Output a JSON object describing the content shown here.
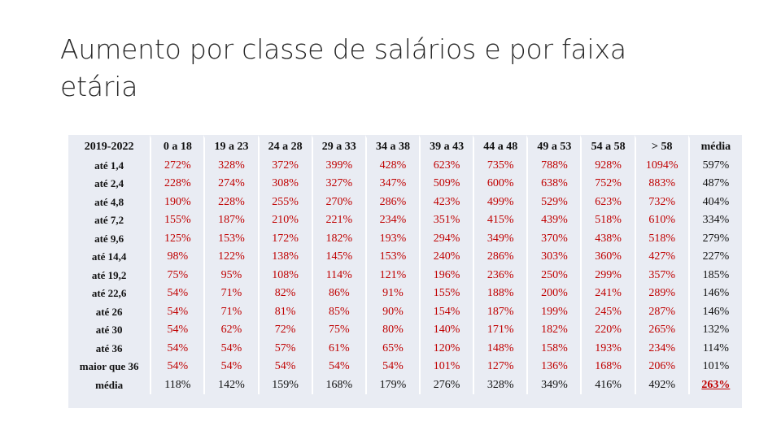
{
  "title": "Aumento por classe de salários e por faixa etária",
  "table": {
    "header": [
      "2019-2022",
      "0 a 18",
      "19 a 23",
      "24 a 28",
      "29 a 33",
      "34 a 38",
      "39 a 43",
      "44 a 48",
      "49 a 53",
      "54 a 58",
      "> 58",
      "média"
    ],
    "rows": [
      {
        "label": "até 1,4",
        "values": [
          "272%",
          "328%",
          "372%",
          "399%",
          "428%",
          "623%",
          "735%",
          "788%",
          "928%",
          "1094%",
          "597%"
        ]
      },
      {
        "label": "até 2,4",
        "values": [
          "228%",
          "274%",
          "308%",
          "327%",
          "347%",
          "509%",
          "600%",
          "638%",
          "752%",
          "883%",
          "487%"
        ]
      },
      {
        "label": "até 4,8",
        "values": [
          "190%",
          "228%",
          "255%",
          "270%",
          "286%",
          "423%",
          "499%",
          "529%",
          "623%",
          "732%",
          "404%"
        ]
      },
      {
        "label": "até 7,2",
        "values": [
          "155%",
          "187%",
          "210%",
          "221%",
          "234%",
          "351%",
          "415%",
          "439%",
          "518%",
          "610%",
          "334%"
        ]
      },
      {
        "label": "até 9,6",
        "values": [
          "125%",
          "153%",
          "172%",
          "182%",
          "193%",
          "294%",
          "349%",
          "370%",
          "438%",
          "518%",
          "279%"
        ]
      },
      {
        "label": "até 14,4",
        "values": [
          "98%",
          "122%",
          "138%",
          "145%",
          "153%",
          "240%",
          "286%",
          "303%",
          "360%",
          "427%",
          "227%"
        ]
      },
      {
        "label": "até 19,2",
        "values": [
          "75%",
          "95%",
          "108%",
          "114%",
          "121%",
          "196%",
          "236%",
          "250%",
          "299%",
          "357%",
          "185%"
        ]
      },
      {
        "label": "até 22,6",
        "values": [
          "54%",
          "71%",
          "82%",
          "86%",
          "91%",
          "155%",
          "188%",
          "200%",
          "241%",
          "289%",
          "146%"
        ]
      },
      {
        "label": "até 26",
        "values": [
          "54%",
          "71%",
          "81%",
          "85%",
          "90%",
          "154%",
          "187%",
          "199%",
          "245%",
          "287%",
          "146%"
        ]
      },
      {
        "label": "até 30",
        "values": [
          "54%",
          "62%",
          "72%",
          "75%",
          "80%",
          "140%",
          "171%",
          "182%",
          "220%",
          "265%",
          "132%"
        ]
      },
      {
        "label": "até 36",
        "values": [
          "54%",
          "54%",
          "57%",
          "61%",
          "65%",
          "120%",
          "148%",
          "158%",
          "193%",
          "234%",
          "114%"
        ]
      },
      {
        "label": "maior que 36",
        "values": [
          "54%",
          "54%",
          "54%",
          "54%",
          "54%",
          "101%",
          "127%",
          "136%",
          "168%",
          "206%",
          "101%"
        ]
      },
      {
        "label": "média",
        "values": [
          "118%",
          "142%",
          "159%",
          "168%",
          "179%",
          "276%",
          "328%",
          "349%",
          "416%",
          "492%",
          "263%"
        ]
      }
    ],
    "colors": {
      "red": "#c00000",
      "black": "#111111",
      "shade": "#e9ecf3"
    }
  }
}
